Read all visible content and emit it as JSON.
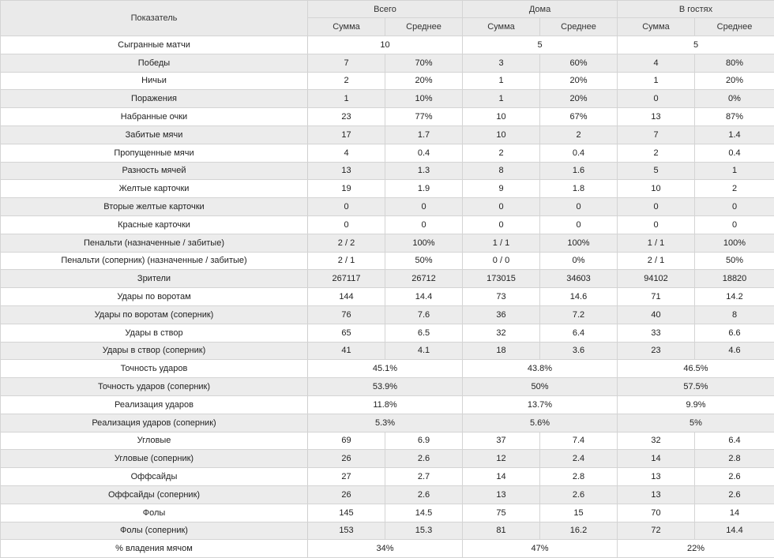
{
  "header": {
    "indicator": "Показатель",
    "groups": [
      "Всего",
      "Дома",
      "В гостях"
    ],
    "sub": [
      "Сумма",
      "Среднее"
    ]
  },
  "rows": [
    {
      "label": "Сыгранные матчи",
      "merged": [
        "10",
        "5",
        "5"
      ]
    },
    {
      "label": "Победы",
      "cells": [
        "7",
        "70%",
        "3",
        "60%",
        "4",
        "80%"
      ]
    },
    {
      "label": "Ничьи",
      "cells": [
        "2",
        "20%",
        "1",
        "20%",
        "1",
        "20%"
      ]
    },
    {
      "label": "Поражения",
      "cells": [
        "1",
        "10%",
        "1",
        "20%",
        "0",
        "0%"
      ]
    },
    {
      "label": "Набранные очки",
      "cells": [
        "23",
        "77%",
        "10",
        "67%",
        "13",
        "87%"
      ]
    },
    {
      "label": "Забитые мячи",
      "cells": [
        "17",
        "1.7",
        "10",
        "2",
        "7",
        "1.4"
      ]
    },
    {
      "label": "Пропущенные мячи",
      "cells": [
        "4",
        "0.4",
        "2",
        "0.4",
        "2",
        "0.4"
      ]
    },
    {
      "label": "Разность мячей",
      "cells": [
        "13",
        "1.3",
        "8",
        "1.6",
        "5",
        "1"
      ]
    },
    {
      "label": "Желтые карточки",
      "cells": [
        "19",
        "1.9",
        "9",
        "1.8",
        "10",
        "2"
      ]
    },
    {
      "label": "Вторые желтые карточки",
      "cells": [
        "0",
        "0",
        "0",
        "0",
        "0",
        "0"
      ]
    },
    {
      "label": "Красные карточки",
      "cells": [
        "0",
        "0",
        "0",
        "0",
        "0",
        "0"
      ]
    },
    {
      "label": "Пенальти (назначенные / забитые)",
      "cells": [
        "2 / 2",
        "100%",
        "1 / 1",
        "100%",
        "1 / 1",
        "100%"
      ]
    },
    {
      "label": "Пенальти (соперник) (назначенные / забитые)",
      "cells": [
        "2 / 1",
        "50%",
        "0 / 0",
        "0%",
        "2 / 1",
        "50%"
      ]
    },
    {
      "label": "Зрители",
      "cells": [
        "267117",
        "26712",
        "173015",
        "34603",
        "94102",
        "18820"
      ]
    },
    {
      "label": "Удары по воротам",
      "cells": [
        "144",
        "14.4",
        "73",
        "14.6",
        "71",
        "14.2"
      ]
    },
    {
      "label": "Удары по воротам (соперник)",
      "cells": [
        "76",
        "7.6",
        "36",
        "7.2",
        "40",
        "8"
      ]
    },
    {
      "label": "Удары в створ",
      "cells": [
        "65",
        "6.5",
        "32",
        "6.4",
        "33",
        "6.6"
      ]
    },
    {
      "label": "Удары в створ (соперник)",
      "cells": [
        "41",
        "4.1",
        "18",
        "3.6",
        "23",
        "4.6"
      ]
    },
    {
      "label": "Точность ударов",
      "merged": [
        "45.1%",
        "43.8%",
        "46.5%"
      ]
    },
    {
      "label": "Точность ударов (соперник)",
      "merged": [
        "53.9%",
        "50%",
        "57.5%"
      ]
    },
    {
      "label": "Реализация ударов",
      "merged": [
        "11.8%",
        "13.7%",
        "9.9%"
      ]
    },
    {
      "label": "Реализация ударов (соперник)",
      "merged": [
        "5.3%",
        "5.6%",
        "5%"
      ]
    },
    {
      "label": "Угловые",
      "cells": [
        "69",
        "6.9",
        "37",
        "7.4",
        "32",
        "6.4"
      ]
    },
    {
      "label": "Угловые (соперник)",
      "cells": [
        "26",
        "2.6",
        "12",
        "2.4",
        "14",
        "2.8"
      ]
    },
    {
      "label": "Оффсайды",
      "cells": [
        "27",
        "2.7",
        "14",
        "2.8",
        "13",
        "2.6"
      ]
    },
    {
      "label": "Оффсайды (соперник)",
      "cells": [
        "26",
        "2.6",
        "13",
        "2.6",
        "13",
        "2.6"
      ]
    },
    {
      "label": "Фолы",
      "cells": [
        "145",
        "14.5",
        "75",
        "15",
        "70",
        "14"
      ]
    },
    {
      "label": "Фолы (соперник)",
      "cells": [
        "153",
        "15.3",
        "81",
        "16.2",
        "72",
        "14.4"
      ]
    },
    {
      "label": "% владения мячом",
      "merged": [
        "34%",
        "47%",
        "22%"
      ]
    }
  ]
}
